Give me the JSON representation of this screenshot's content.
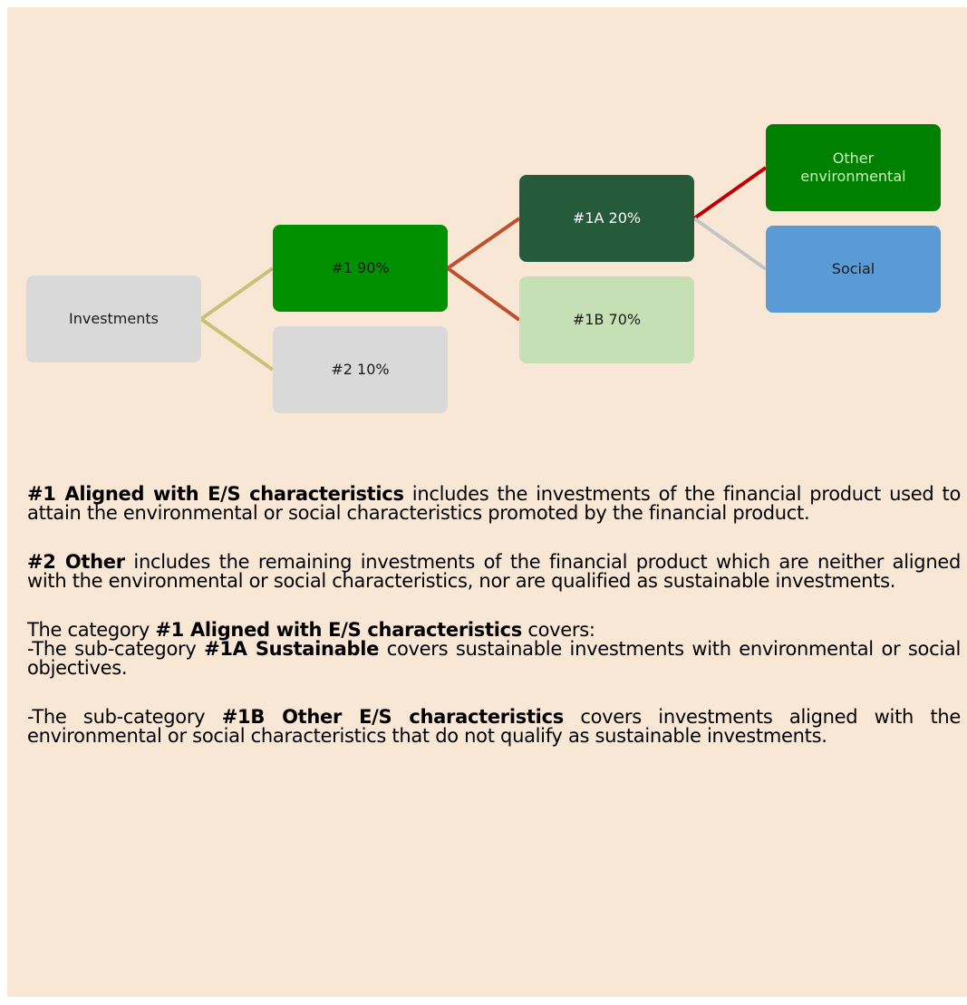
{
  "nodes": [
    {
      "label": "Investments"
    },
    {
      "label": "#1 90%"
    },
    {
      "label": "#2 10%"
    },
    {
      "label": "#1A 20%"
    },
    {
      "label": "#1B 70%"
    },
    {
      "label": "Other environmental"
    },
    {
      "label": "Social"
    }
  ],
  "paragraphs": [
    {
      "segments": [
        {
          "text": "#1 Aligned with E/S characteristics",
          "bold": true
        },
        {
          "text": " includes the investments of the financial product used to attain the environmental or social characteristics promoted by the financial product.",
          "bold": false
        }
      ]
    },
    {
      "segments": [
        {
          "text": "#2 Other",
          "bold": true
        },
        {
          "text": " includes the remaining investments of the financial product which are neither aligned with the environmental or social characteristics, nor are qualified as sustainable investments.",
          "bold": false
        }
      ]
    },
    {
      "segments": [
        {
          "text": "The category ",
          "bold": false
        },
        {
          "text": "#1 Aligned with E/S characteristics",
          "bold": true
        },
        {
          "text": " covers:",
          "bold": false
        }
      ]
    },
    {
      "segments": [
        {
          "text": "-The sub-category ",
          "bold": false
        },
        {
          "text": "#1A Sustainable",
          "bold": true
        },
        {
          "text": " covers sustainable investments with environmental or social objectives.",
          "bold": false
        }
      ]
    },
    {
      "segments": [
        {
          "text": "-The sub-category ",
          "bold": false
        },
        {
          "text": "#1B Other E/S characteristics",
          "bold": true
        },
        {
          "text": " covers investments aligned with the environmental or social characteristics that do not qualify as sustainable investments.",
          "bold": false
        }
      ]
    }
  ]
}
